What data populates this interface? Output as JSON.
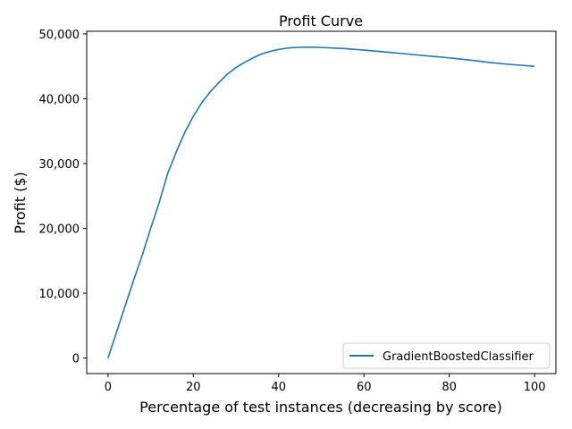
{
  "chart_data": {
    "type": "line",
    "title": "Profit Curve",
    "xlabel": "Percentage of test instances (decreasing by score)",
    "ylabel": "Profit ($)",
    "xlim": [
      -5,
      105
    ],
    "ylim": [
      -2400,
      50400
    ],
    "x_ticks": [
      0,
      20,
      40,
      60,
      80,
      100
    ],
    "x_tick_labels": [
      "0",
      "20",
      "40",
      "60",
      "80",
      "100"
    ],
    "y_ticks": [
      0,
      10000,
      20000,
      30000,
      40000,
      50000
    ],
    "y_tick_labels": [
      "0",
      "10,000",
      "20,000",
      "30,000",
      "40,000",
      "50,000"
    ],
    "grid": false,
    "legend": {
      "position": "lower-right",
      "entries": [
        "GradientBoostedClassifier"
      ]
    },
    "series": [
      {
        "name": "GradientBoostedClassifier",
        "color": "#1f77b4",
        "x": [
          0,
          2,
          4,
          6,
          8,
          10,
          12,
          14,
          16,
          18,
          20,
          22,
          24,
          26,
          28,
          30,
          32,
          34,
          36,
          38,
          40,
          42,
          44,
          46,
          48,
          50,
          55,
          60,
          65,
          70,
          75,
          80,
          85,
          90,
          95,
          100
        ],
        "y": [
          0,
          4000,
          8000,
          12000,
          15800,
          20000,
          24000,
          28500,
          31800,
          34800,
          37300,
          39400,
          41100,
          42500,
          43800,
          44800,
          45600,
          46300,
          46900,
          47300,
          47600,
          47800,
          47900,
          47950,
          47950,
          47900,
          47750,
          47500,
          47200,
          46900,
          46600,
          46300,
          45950,
          45550,
          45250,
          45000
        ]
      }
    ]
  }
}
